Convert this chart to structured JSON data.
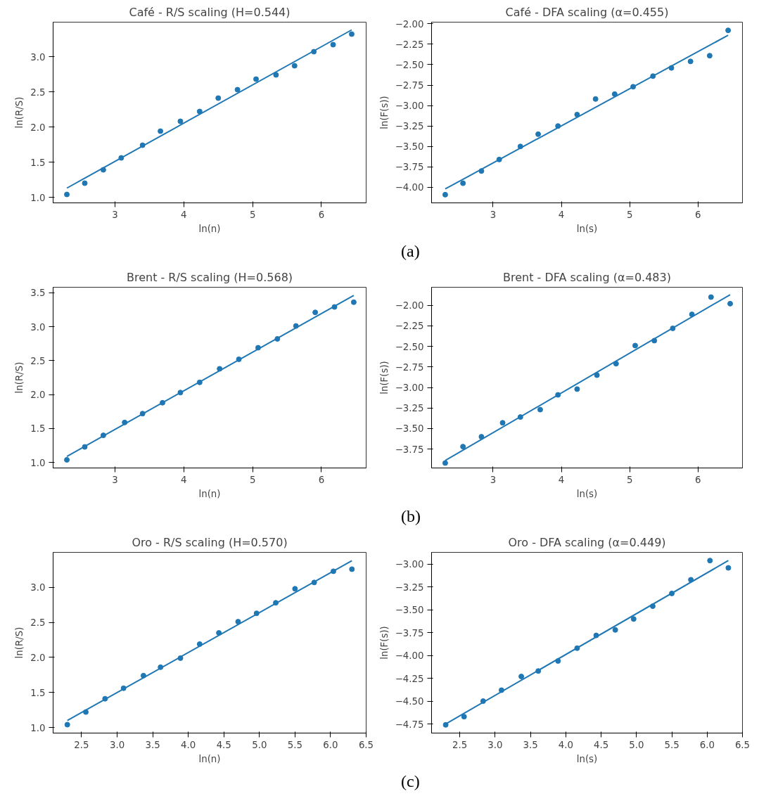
{
  "chart_data": [
    {
      "type": "scatter",
      "title": "Café - R/S scaling (H=0.544)",
      "xlabel": "ln(n)",
      "ylabel": "ln(R/S)",
      "xlim": [
        2.1,
        6.65
      ],
      "ylim": [
        0.92,
        3.49
      ],
      "xticks": [
        3,
        4,
        5,
        6
      ],
      "yticks": [
        {
          "value": 1,
          "label": "1.0"
        },
        {
          "value": 1.5,
          "label": "1.5"
        },
        {
          "value": 2,
          "label": "2.0"
        },
        {
          "value": 2.5,
          "label": "2.5"
        },
        {
          "value": 3,
          "label": "3.0"
        }
      ],
      "grid": false,
      "marker": "circle",
      "x": [
        2.3,
        2.56,
        2.83,
        3.09,
        3.4,
        3.66,
        3.95,
        4.23,
        4.5,
        4.78,
        5.05,
        5.34,
        5.61,
        5.89,
        6.17,
        6.44
      ],
      "series": [
        {
          "color": "#1f77b4",
          "values": [
            1.04,
            1.2,
            1.39,
            1.56,
            1.74,
            1.94,
            2.08,
            2.22,
            2.41,
            2.53,
            2.68,
            2.74,
            2.87,
            3.07,
            3.17,
            3.32
          ]
        },
        {
          "type": "line",
          "marker": "none",
          "color": "#1f77b4",
          "x": [
            2.3,
            6.44
          ],
          "values": [
            1.13,
            3.38
          ]
        }
      ]
    },
    {
      "type": "scatter",
      "title": "Café - DFA scaling (α=0.455)",
      "xlabel": "ln(s)",
      "ylabel": "ln(F(s))",
      "xlim": [
        2.1,
        6.65
      ],
      "ylim": [
        -4.19,
        -1.98
      ],
      "xticks": [
        3,
        4,
        5,
        6
      ],
      "yticks": [
        {
          "value": -4,
          "label": "−4.00"
        },
        {
          "value": -3.75,
          "label": "−3.75"
        },
        {
          "value": -3.5,
          "label": "−3.50"
        },
        {
          "value": -3.25,
          "label": "−3.25"
        },
        {
          "value": -3,
          "label": "−3.00"
        },
        {
          "value": -2.75,
          "label": "−2.75"
        },
        {
          "value": -2.5,
          "label": "−2.50"
        },
        {
          "value": -2.25,
          "label": "−2.25"
        },
        {
          "value": -2,
          "label": "−2.00"
        }
      ],
      "grid": false,
      "marker": "circle",
      "x": [
        2.3,
        2.56,
        2.83,
        3.09,
        3.4,
        3.66,
        3.95,
        4.23,
        4.5,
        4.78,
        5.05,
        5.34,
        5.61,
        5.89,
        6.17,
        6.44
      ],
      "series": [
        {
          "color": "#1f77b4",
          "values": [
            -4.09,
            -3.95,
            -3.8,
            -3.66,
            -3.5,
            -3.35,
            -3.25,
            -3.11,
            -2.92,
            -2.86,
            -2.77,
            -2.64,
            -2.54,
            -2.46,
            -2.39,
            -2.08
          ]
        },
        {
          "type": "line",
          "marker": "none",
          "color": "#1f77b4",
          "x": [
            2.3,
            6.44
          ],
          "values": [
            -4.02,
            -2.14
          ]
        }
      ],
      "annotations": [
        "(a)"
      ]
    },
    {
      "type": "scatter",
      "title": "Brent - R/S scaling (H=0.568)",
      "xlabel": "ln(n)",
      "ylabel": "ln(R/S)",
      "xlim": [
        2.1,
        6.65
      ],
      "ylim": [
        0.92,
        3.58
      ],
      "xticks": [
        3,
        4,
        5,
        6
      ],
      "yticks": [
        {
          "value": 1,
          "label": "1.0"
        },
        {
          "value": 1.5,
          "label": "1.5"
        },
        {
          "value": 2,
          "label": "2.0"
        },
        {
          "value": 2.5,
          "label": "2.5"
        },
        {
          "value": 3,
          "label": "3.0"
        },
        {
          "value": 3.5,
          "label": "3.5"
        }
      ],
      "grid": false,
      "marker": "circle",
      "x": [
        2.3,
        2.56,
        2.83,
        3.14,
        3.4,
        3.69,
        3.95,
        4.23,
        4.52,
        4.8,
        5.08,
        5.36,
        5.63,
        5.91,
        6.19,
        6.47
      ],
      "series": [
        {
          "color": "#1f77b4",
          "values": [
            1.04,
            1.23,
            1.4,
            1.59,
            1.72,
            1.88,
            2.03,
            2.18,
            2.38,
            2.52,
            2.69,
            2.82,
            3.01,
            3.21,
            3.29,
            3.36
          ]
        },
        {
          "type": "line",
          "marker": "none",
          "color": "#1f77b4",
          "x": [
            2.3,
            6.47
          ],
          "values": [
            1.09,
            3.46
          ]
        }
      ]
    },
    {
      "type": "scatter",
      "title": "Brent - DFA scaling (α=0.483)",
      "xlabel": "ln(s)",
      "ylabel": "ln(F(s))",
      "xlim": [
        2.1,
        6.65
      ],
      "ylim": [
        -3.98,
        -1.78
      ],
      "xticks": [
        3,
        4,
        5,
        6
      ],
      "yticks": [
        {
          "value": -3.75,
          "label": "−3.75"
        },
        {
          "value": -3.5,
          "label": "−3.50"
        },
        {
          "value": -3.25,
          "label": "−3.25"
        },
        {
          "value": -3,
          "label": "−3.00"
        },
        {
          "value": -2.75,
          "label": "−2.75"
        },
        {
          "value": -2.5,
          "label": "−2.50"
        },
        {
          "value": -2.25,
          "label": "−2.25"
        },
        {
          "value": -2,
          "label": "−2.00"
        }
      ],
      "grid": false,
      "marker": "circle",
      "x": [
        2.3,
        2.56,
        2.83,
        3.14,
        3.4,
        3.69,
        3.95,
        4.23,
        4.52,
        4.8,
        5.08,
        5.36,
        5.63,
        5.91,
        6.19,
        6.47
      ],
      "series": [
        {
          "color": "#1f77b4",
          "values": [
            -3.92,
            -3.72,
            -3.6,
            -3.43,
            -3.36,
            -3.27,
            -3.09,
            -3.02,
            -2.85,
            -2.71,
            -2.49,
            -2.43,
            -2.28,
            -2.11,
            -1.9,
            -1.98
          ]
        },
        {
          "type": "line",
          "marker": "none",
          "color": "#1f77b4",
          "x": [
            2.3,
            6.47
          ],
          "values": [
            -3.89,
            -1.87
          ]
        }
      ],
      "annotations": [
        "(b)"
      ]
    },
    {
      "type": "scatter",
      "title": "Oro - R/S scaling (H=0.570)",
      "xlabel": "ln(n)",
      "ylabel": "ln(R/S)",
      "xlim": [
        2.1,
        6.5
      ],
      "ylim": [
        0.92,
        3.5
      ],
      "xticks": [
        {
          "value": 2.5,
          "label": "2.5"
        },
        {
          "value": 3,
          "label": "3.0"
        },
        {
          "value": 3.5,
          "label": "3.5"
        },
        {
          "value": 4,
          "label": "4.0"
        },
        {
          "value": 4.5,
          "label": "4.5"
        },
        {
          "value": 5,
          "label": "5.0"
        },
        {
          "value": 5.5,
          "label": "5.5"
        },
        {
          "value": 6,
          "label": "6.0"
        },
        {
          "value": 6.5,
          "label": "6.5"
        }
      ],
      "yticks": [
        {
          "value": 1,
          "label": "1.0"
        },
        {
          "value": 1.5,
          "label": "1.5"
        },
        {
          "value": 2,
          "label": "2.0"
        },
        {
          "value": 2.5,
          "label": "2.5"
        },
        {
          "value": 3,
          "label": "3.0"
        }
      ],
      "grid": false,
      "marker": "circle",
      "x": [
        2.3,
        2.56,
        2.83,
        3.09,
        3.37,
        3.61,
        3.89,
        4.16,
        4.43,
        4.7,
        4.96,
        5.23,
        5.5,
        5.77,
        6.04,
        6.3
      ],
      "series": [
        {
          "color": "#1f77b4",
          "values": [
            1.04,
            1.22,
            1.41,
            1.56,
            1.74,
            1.86,
            1.99,
            2.19,
            2.35,
            2.51,
            2.63,
            2.78,
            2.98,
            3.07,
            3.23,
            3.26
          ]
        },
        {
          "type": "line",
          "marker": "none",
          "color": "#1f77b4",
          "x": [
            2.3,
            6.3
          ],
          "values": [
            1.1,
            3.38
          ]
        }
      ]
    },
    {
      "type": "scatter",
      "title": "Oro - DFA scaling (α=0.449)",
      "xlabel": "ln(s)",
      "ylabel": "ln(F(s))",
      "xlim": [
        2.1,
        6.5
      ],
      "ylim": [
        -4.85,
        -2.87
      ],
      "xticks": [
        {
          "value": 2.5,
          "label": "2.5"
        },
        {
          "value": 3,
          "label": "3.0"
        },
        {
          "value": 3.5,
          "label": "3.5"
        },
        {
          "value": 4,
          "label": "4.0"
        },
        {
          "value": 4.5,
          "label": "4.5"
        },
        {
          "value": 5,
          "label": "5.0"
        },
        {
          "value": 5.5,
          "label": "5.5"
        },
        {
          "value": 6,
          "label": "6.0"
        },
        {
          "value": 6.5,
          "label": "6.5"
        }
      ],
      "yticks": [
        {
          "value": -4.75,
          "label": "−4.75"
        },
        {
          "value": -4.5,
          "label": "−4.50"
        },
        {
          "value": -4.25,
          "label": "−4.25"
        },
        {
          "value": -4,
          "label": "−4.00"
        },
        {
          "value": -3.75,
          "label": "−3.75"
        },
        {
          "value": -3.5,
          "label": "−3.50"
        },
        {
          "value": -3.25,
          "label": "−3.25"
        },
        {
          "value": -3,
          "label": "−3.00"
        }
      ],
      "grid": false,
      "marker": "circle",
      "x": [
        2.3,
        2.56,
        2.83,
        3.09,
        3.37,
        3.61,
        3.89,
        4.16,
        4.43,
        4.7,
        4.96,
        5.23,
        5.5,
        5.77,
        6.04,
        6.3
      ],
      "series": [
        {
          "color": "#1f77b4",
          "values": [
            -4.76,
            -4.67,
            -4.5,
            -4.38,
            -4.23,
            -4.17,
            -4.06,
            -3.92,
            -3.78,
            -3.72,
            -3.6,
            -3.46,
            -3.32,
            -3.17,
            -2.96,
            -3.04
          ]
        },
        {
          "type": "line",
          "marker": "none",
          "color": "#1f77b4",
          "x": [
            2.3,
            6.3
          ],
          "values": [
            -4.75,
            -2.96
          ]
        }
      ],
      "annotations": [
        "(c)"
      ]
    }
  ]
}
